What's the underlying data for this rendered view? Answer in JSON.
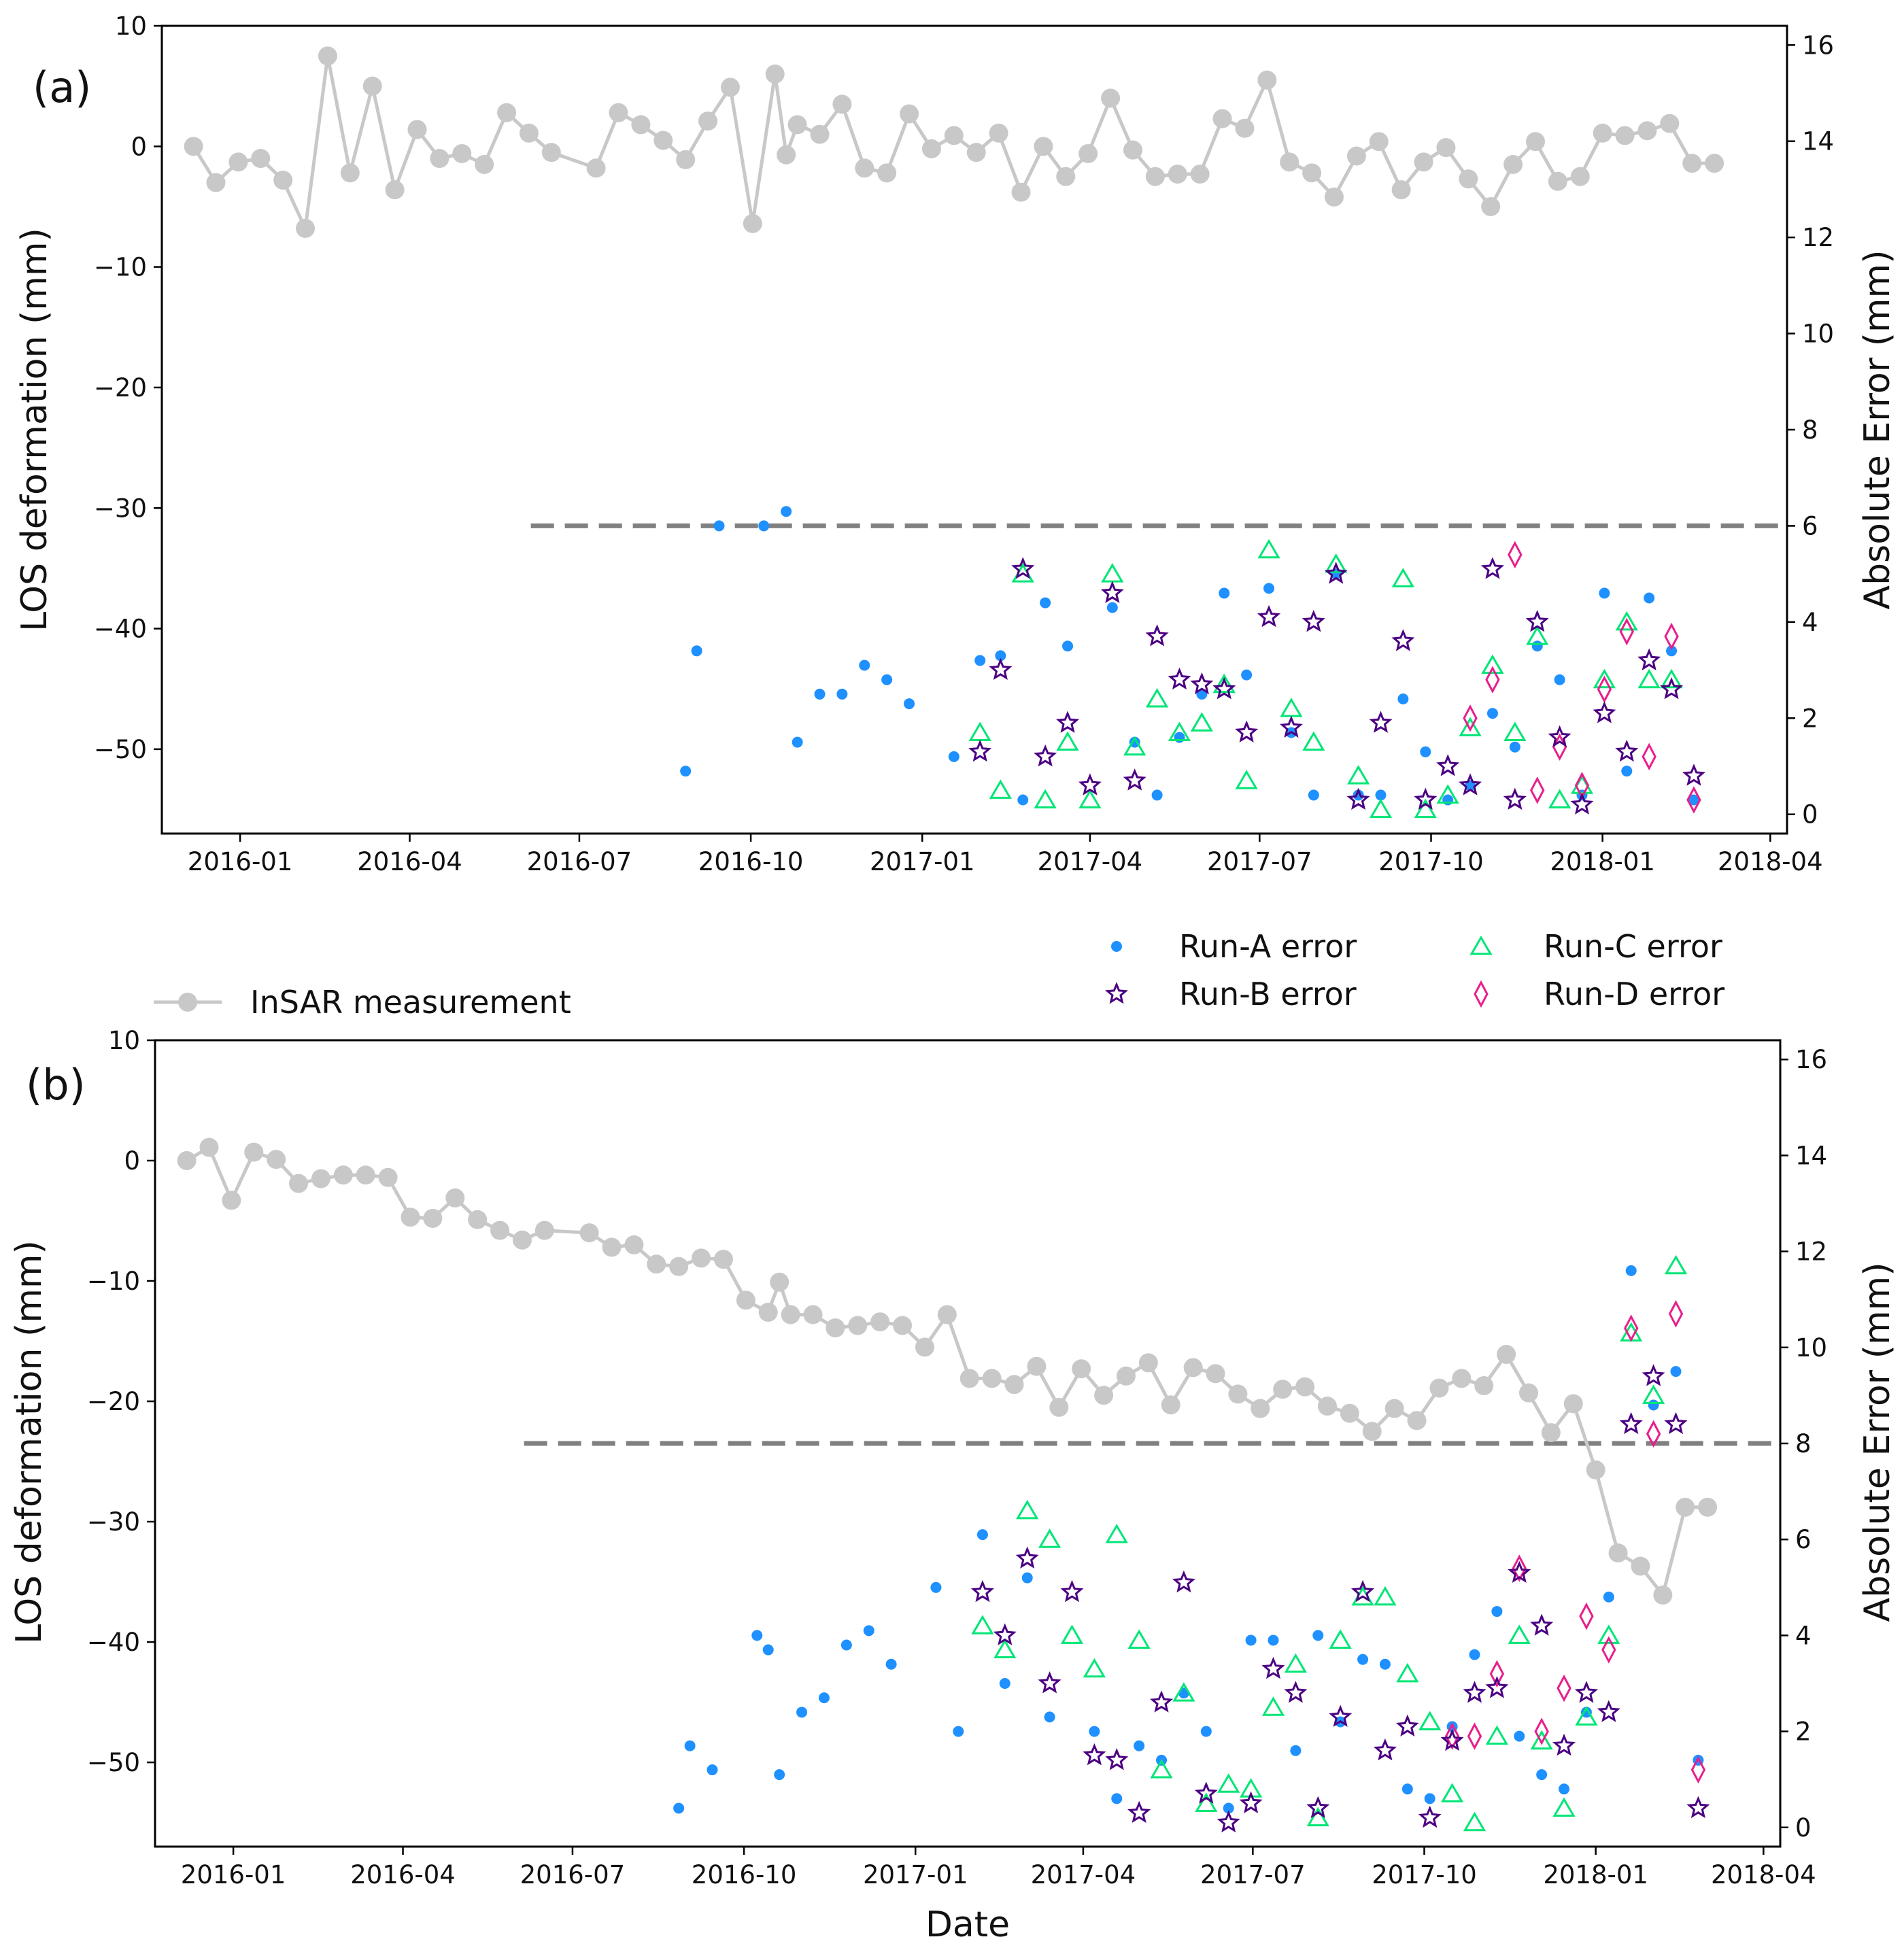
{
  "figure": {
    "xlabel": "Date",
    "legend": {
      "insar": "InSAR measurement",
      "run_a": "Run-A error",
      "run_b": "Run-B error",
      "run_c": "Run-C error",
      "run_d": "Run-D error"
    },
    "colors": {
      "insar": "#c8c8c8",
      "run_a": "#1e90ff",
      "run_b": "#4b0082",
      "run_c": "#00e676",
      "run_d": "#e91e8c",
      "threshold": "#808080"
    }
  },
  "chart_data": [
    {
      "type": "line",
      "panel_label": "(a)",
      "ylabel": "LOS deformation (mm)",
      "y2label": "Absolute Error (mm)",
      "xlim": [
        "2015-11-20",
        "2018-04-10"
      ],
      "ylim": [
        -57,
        10
      ],
      "y2lim": [
        -0.4,
        16.4
      ],
      "x_ticks": [
        "2016-01",
        "2016-04",
        "2016-07",
        "2016-10",
        "2017-01",
        "2017-04",
        "2017-07",
        "2017-10",
        "2018-01",
        "2018-04"
      ],
      "y_ticks": [
        "10",
        "0",
        "−10",
        "−20",
        "−30",
        "−40",
        "−50"
      ],
      "y2_ticks": [
        "16",
        "14",
        "12",
        "10",
        "8",
        "6",
        "4",
        "2",
        "0"
      ],
      "threshold": {
        "value": 6,
        "axis": "right",
        "start": "2016-06-05",
        "end": "2018-04-10"
      },
      "insar": {
        "dates": [
          "2015-12-07",
          "2015-12-19",
          "2015-12-31",
          "2016-01-12",
          "2016-01-24",
          "2016-02-05",
          "2016-02-17",
          "2016-02-29",
          "2016-03-12",
          "2016-03-24",
          "2016-04-05",
          "2016-04-17",
          "2016-04-29",
          "2016-05-11",
          "2016-05-23",
          "2016-06-04",
          "2016-06-16",
          "2016-07-10",
          "2016-07-22",
          "2016-08-03",
          "2016-08-15",
          "2016-08-27",
          "2016-09-08",
          "2016-09-20",
          "2016-10-02",
          "2016-10-14",
          "2016-10-20",
          "2016-10-26",
          "2016-11-07",
          "2016-11-19",
          "2016-12-01",
          "2016-12-13",
          "2016-12-25",
          "2017-01-06",
          "2017-01-18",
          "2017-01-30",
          "2017-02-11",
          "2017-02-23",
          "2017-03-07",
          "2017-03-19",
          "2017-03-31",
          "2017-04-12",
          "2017-04-24",
          "2017-05-06",
          "2017-05-18",
          "2017-05-30",
          "2017-06-11",
          "2017-06-23",
          "2017-07-05",
          "2017-07-17",
          "2017-07-29",
          "2017-08-10",
          "2017-08-22",
          "2017-09-03",
          "2017-09-15",
          "2017-09-27",
          "2017-10-09",
          "2017-10-21",
          "2017-11-02",
          "2017-11-14",
          "2017-11-26",
          "2017-12-08",
          "2017-12-20",
          "2018-01-01",
          "2018-01-13",
          "2018-01-25",
          "2018-02-06",
          "2018-02-18",
          "2018-03-02"
        ],
        "values": [
          0,
          -3,
          -1.3,
          -1,
          -2.8,
          -6.8,
          7.5,
          -2.2,
          5,
          -3.6,
          1.4,
          -1,
          -0.6,
          -1.5,
          2.8,
          1.1,
          -0.5,
          -1.8,
          2.8,
          1.8,
          0.5,
          -1.1,
          2.1,
          4.9,
          -6.4,
          6,
          -0.7,
          1.8,
          1,
          3.5,
          -1.8,
          -2.2,
          2.7,
          -0.2,
          0.9,
          -0.5,
          1.1,
          -3.8,
          0,
          -2.5,
          -0.6,
          4,
          -0.3,
          -2.5,
          -2.3,
          -2.3,
          2.3,
          1.5,
          5.5,
          -1.3,
          -2.2,
          -4.2,
          -0.8,
          0.4,
          -3.6,
          -1.3,
          -0.1,
          -2.7,
          -5,
          -1.5,
          0.4,
          -2.9,
          -2.5,
          1.1,
          0.9,
          1.3,
          1.9,
          -1.4,
          -1.4
        ]
      },
      "run_a": {
        "dates": [
          "2016-08-27",
          "2016-09-02",
          "2016-09-14",
          "2016-10-08",
          "2016-10-20",
          "2016-10-26",
          "2016-11-07",
          "2016-11-19",
          "2016-12-01",
          "2016-12-13",
          "2016-12-25",
          "2017-01-18",
          "2017-02-01",
          "2017-02-12",
          "2017-02-24",
          "2017-03-08",
          "2017-03-20",
          "2017-04-13",
          "2017-04-25",
          "2017-05-07",
          "2017-05-19",
          "2017-05-31",
          "2017-06-12",
          "2017-06-24",
          "2017-07-06",
          "2017-07-18",
          "2017-07-30",
          "2017-08-11",
          "2017-08-23",
          "2017-09-04",
          "2017-09-16",
          "2017-09-28",
          "2017-10-10",
          "2017-10-22",
          "2017-11-03",
          "2017-11-15",
          "2017-11-27",
          "2017-12-09",
          "2017-12-21",
          "2018-01-02",
          "2018-01-14",
          "2018-01-26",
          "2018-02-07",
          "2018-02-19"
        ],
        "values": [
          0.9,
          3.4,
          6.0,
          6.0,
          6.3,
          1.5,
          2.5,
          2.5,
          3.1,
          2.8,
          2.3,
          1.2,
          3.2,
          3.3,
          0.3,
          4.4,
          3.5,
          4.3,
          1.5,
          0.4,
          1.6,
          2.5,
          4.6,
          2.9,
          4.7,
          1.7,
          0.4,
          5.0,
          0.4,
          0.4,
          2.4,
          1.3,
          0.3,
          0.6,
          2.1,
          1.4,
          3.5,
          2.8,
          0.4,
          4.6,
          0.9,
          4.5,
          3.4,
          0.3
        ]
      },
      "run_b": {
        "dates": [
          "2017-02-01",
          "2017-02-12",
          "2017-02-24",
          "2017-03-08",
          "2017-03-20",
          "2017-04-01",
          "2017-04-13",
          "2017-04-25",
          "2017-05-07",
          "2017-05-19",
          "2017-05-31",
          "2017-06-12",
          "2017-06-24",
          "2017-07-06",
          "2017-07-18",
          "2017-07-30",
          "2017-08-11",
          "2017-08-23",
          "2017-09-04",
          "2017-09-16",
          "2017-09-28",
          "2017-10-10",
          "2017-10-22",
          "2017-11-03",
          "2017-11-15",
          "2017-11-27",
          "2017-12-09",
          "2017-12-21",
          "2018-01-02",
          "2018-01-14",
          "2018-01-26",
          "2018-02-07",
          "2018-02-19"
        ],
        "values": [
          1.3,
          3.0,
          5.1,
          1.2,
          1.9,
          0.6,
          4.6,
          0.7,
          3.7,
          2.8,
          2.7,
          2.6,
          1.7,
          4.1,
          1.8,
          4.0,
          5.0,
          0.3,
          1.9,
          3.6,
          0.3,
          1.0,
          0.6,
          5.1,
          0.3,
          4.0,
          1.6,
          0.2,
          2.1,
          1.3,
          3.2,
          2.6,
          0.8
        ]
      },
      "run_c": {
        "dates": [
          "2017-02-01",
          "2017-02-12",
          "2017-02-24",
          "2017-03-08",
          "2017-03-20",
          "2017-04-01",
          "2017-04-13",
          "2017-04-25",
          "2017-05-07",
          "2017-05-19",
          "2017-05-31",
          "2017-06-12",
          "2017-06-24",
          "2017-07-06",
          "2017-07-18",
          "2017-07-30",
          "2017-08-11",
          "2017-08-23",
          "2017-09-04",
          "2017-09-16",
          "2017-09-28",
          "2017-10-10",
          "2017-10-22",
          "2017-11-03",
          "2017-11-15",
          "2017-11-27",
          "2017-12-09",
          "2017-12-21",
          "2018-01-02",
          "2018-01-14",
          "2018-01-26",
          "2018-02-07"
        ],
        "values": [
          1.7,
          0.5,
          5.0,
          0.3,
          1.5,
          0.3,
          5.0,
          1.4,
          2.4,
          1.7,
          1.9,
          2.7,
          0.7,
          5.5,
          2.2,
          1.5,
          5.2,
          0.8,
          0.1,
          4.9,
          0.1,
          0.4,
          1.8,
          3.1,
          1.7,
          3.7,
          0.3,
          0.6,
          2.8,
          4.0,
          2.8,
          2.8
        ]
      },
      "run_d": {
        "dates": [
          "2017-10-22",
          "2017-11-03",
          "2017-11-15",
          "2017-11-27",
          "2017-12-09",
          "2017-12-21",
          "2018-01-02",
          "2018-01-14",
          "2018-01-26",
          "2018-02-07",
          "2018-02-19"
        ],
        "values": [
          2.0,
          2.8,
          5.4,
          0.5,
          1.4,
          0.6,
          2.6,
          3.8,
          1.2,
          3.7,
          0.3
        ]
      }
    },
    {
      "type": "line",
      "panel_label": "(b)",
      "ylabel": "LOS deformation (mm)",
      "y2label": "Absolute Error (mm)",
      "xlim": [
        "2015-11-20",
        "2018-04-10"
      ],
      "ylim": [
        -57,
        10
      ],
      "y2lim": [
        -0.4,
        16.4
      ],
      "x_ticks": [
        "2016-01",
        "2016-04",
        "2016-07",
        "2016-10",
        "2017-01",
        "2017-04",
        "2017-07",
        "2017-10",
        "2018-01",
        "2018-04"
      ],
      "y_ticks": [
        "10",
        "0",
        "−10",
        "−20",
        "−30",
        "−40",
        "−50"
      ],
      "y2_ticks": [
        "16",
        "14",
        "12",
        "10",
        "8",
        "6",
        "4",
        "2",
        "0"
      ],
      "threshold": {
        "value": 8,
        "axis": "right",
        "start": "2016-06-05",
        "end": "2018-04-10"
      },
      "insar": {
        "dates": [
          "2015-12-07",
          "2015-12-19",
          "2015-12-31",
          "2016-01-12",
          "2016-01-24",
          "2016-02-05",
          "2016-02-17",
          "2016-02-29",
          "2016-03-12",
          "2016-03-24",
          "2016-04-05",
          "2016-04-17",
          "2016-04-29",
          "2016-05-11",
          "2016-05-23",
          "2016-06-04",
          "2016-06-16",
          "2016-07-10",
          "2016-07-22",
          "2016-08-03",
          "2016-08-15",
          "2016-08-27",
          "2016-09-08",
          "2016-09-20",
          "2016-10-02",
          "2016-10-14",
          "2016-10-20",
          "2016-10-26",
          "2016-11-07",
          "2016-11-19",
          "2016-12-01",
          "2016-12-13",
          "2016-12-25",
          "2017-01-06",
          "2017-01-18",
          "2017-01-30",
          "2017-02-11",
          "2017-02-23",
          "2017-03-07",
          "2017-03-19",
          "2017-03-31",
          "2017-04-12",
          "2017-04-24",
          "2017-05-06",
          "2017-05-18",
          "2017-05-30",
          "2017-06-11",
          "2017-06-23",
          "2017-07-05",
          "2017-07-17",
          "2017-07-29",
          "2017-08-10",
          "2017-08-22",
          "2017-09-03",
          "2017-09-15",
          "2017-09-27",
          "2017-10-09",
          "2017-10-21",
          "2017-11-02",
          "2017-11-14",
          "2017-11-26",
          "2017-12-08",
          "2017-12-20",
          "2018-01-01",
          "2018-01-13",
          "2018-01-25",
          "2018-02-06",
          "2018-02-18",
          "2018-03-02"
        ],
        "values": [
          0,
          1.1,
          -3.3,
          0.7,
          0.1,
          -1.9,
          -1.5,
          -1.2,
          -1.2,
          -1.4,
          -4.7,
          -4.8,
          -3.1,
          -4.9,
          -5.8,
          -6.6,
          -5.8,
          -6,
          -7.2,
          -7,
          -8.6,
          -8.8,
          -8.1,
          -8.2,
          -11.6,
          -12.6,
          -10.1,
          -12.8,
          -12.8,
          -13.9,
          -13.7,
          -13.4,
          -13.7,
          -15.5,
          -12.8,
          -18.1,
          -18.1,
          -18.6,
          -17.1,
          -20.5,
          -17.3,
          -19.5,
          -17.9,
          -16.8,
          -20.3,
          -17.2,
          -17.7,
          -19.4,
          -20.6,
          -19,
          -18.8,
          -20.4,
          -21,
          -22.5,
          -20.6,
          -21.6,
          -18.9,
          -18.1,
          -18.7,
          -16.1,
          -19.3,
          -22.6,
          -20.2,
          -25.7,
          -32.6,
          -33.7,
          -36.1,
          -28.8,
          -28.8
        ]
      },
      "run_a": {
        "dates": [
          "2016-08-27",
          "2016-09-02",
          "2016-09-14",
          "2016-10-08",
          "2016-10-14",
          "2016-10-20",
          "2016-11-01",
          "2016-11-13",
          "2016-11-25",
          "2016-12-07",
          "2016-12-19",
          "2017-01-12",
          "2017-01-24",
          "2017-02-06",
          "2017-02-18",
          "2017-03-02",
          "2017-03-14",
          "2017-04-07",
          "2017-04-19",
          "2017-05-01",
          "2017-05-13",
          "2017-05-25",
          "2017-06-06",
          "2017-06-18",
          "2017-06-30",
          "2017-07-12",
          "2017-07-24",
          "2017-08-05",
          "2017-08-17",
          "2017-08-29",
          "2017-09-10",
          "2017-09-22",
          "2017-10-04",
          "2017-10-16",
          "2017-10-28",
          "2017-11-09",
          "2017-11-21",
          "2017-12-03",
          "2017-12-15",
          "2017-12-27",
          "2018-01-08",
          "2018-01-20",
          "2018-02-01",
          "2018-02-13",
          "2018-02-25"
        ],
        "values": [
          0.4,
          1.7,
          1.2,
          4.0,
          3.7,
          1.1,
          2.4,
          2.7,
          3.8,
          4.1,
          3.4,
          5.0,
          2.0,
          6.1,
          3.0,
          5.2,
          2.3,
          2.0,
          0.6,
          1.7,
          1.4,
          2.8,
          2.0,
          0.4,
          3.9,
          3.9,
          1.6,
          4.0,
          2.2,
          3.5,
          3.4,
          0.8,
          0.6,
          2.1,
          3.6,
          4.5,
          1.9,
          1.1,
          0.8,
          2.4,
          4.8,
          11.6,
          8.8,
          9.5,
          1.4
        ]
      },
      "run_b": {
        "dates": [
          "2017-02-06",
          "2017-02-18",
          "2017-03-02",
          "2017-03-14",
          "2017-03-26",
          "2017-04-07",
          "2017-04-19",
          "2017-05-01",
          "2017-05-13",
          "2017-05-25",
          "2017-06-06",
          "2017-06-18",
          "2017-06-30",
          "2017-07-12",
          "2017-07-24",
          "2017-08-05",
          "2017-08-17",
          "2017-08-29",
          "2017-09-10",
          "2017-09-22",
          "2017-10-04",
          "2017-10-16",
          "2017-10-28",
          "2017-11-09",
          "2017-11-21",
          "2017-12-03",
          "2017-12-15",
          "2017-12-27",
          "2018-01-08",
          "2018-01-20",
          "2018-02-01",
          "2018-02-13",
          "2018-02-25"
        ],
        "values": [
          4.9,
          4.0,
          5.6,
          3.0,
          4.9,
          1.5,
          1.4,
          0.3,
          2.6,
          5.1,
          0.7,
          0.1,
          0.5,
          3.3,
          2.8,
          0.4,
          2.3,
          4.9,
          1.6,
          2.1,
          0.2,
          1.8,
          2.8,
          2.9,
          5.3,
          4.2,
          1.7,
          2.8,
          2.4,
          8.4,
          9.4,
          8.4,
          0.4
        ]
      },
      "run_c": {
        "dates": [
          "2017-02-06",
          "2017-02-18",
          "2017-03-02",
          "2017-03-14",
          "2017-03-26",
          "2017-04-07",
          "2017-04-19",
          "2017-05-01",
          "2017-05-13",
          "2017-05-25",
          "2017-06-06",
          "2017-06-18",
          "2017-06-30",
          "2017-07-12",
          "2017-07-24",
          "2017-08-05",
          "2017-08-17",
          "2017-08-29",
          "2017-09-10",
          "2017-09-22",
          "2017-10-04",
          "2017-10-16",
          "2017-10-28",
          "2017-11-09",
          "2017-11-21",
          "2017-12-03",
          "2017-12-15",
          "2017-12-27",
          "2018-01-08",
          "2018-01-20",
          "2018-02-01",
          "2018-02-13"
        ],
        "values": [
          4.2,
          3.7,
          6.6,
          6.0,
          4.0,
          3.3,
          6.1,
          3.9,
          1.2,
          2.8,
          0.5,
          0.9,
          0.8,
          2.5,
          3.4,
          0.2,
          3.9,
          4.8,
          4.8,
          3.2,
          2.2,
          0.7,
          0.1,
          1.9,
          4.0,
          1.8,
          0.4,
          2.3,
          4.0,
          10.3,
          9.0,
          11.7
        ]
      },
      "run_d": {
        "dates": [
          "2017-10-16",
          "2017-10-28",
          "2017-11-09",
          "2017-11-21",
          "2017-12-03",
          "2017-12-15",
          "2017-12-27",
          "2018-01-08",
          "2018-01-20",
          "2018-02-01",
          "2018-02-13",
          "2018-02-25"
        ],
        "values": [
          1.9,
          1.9,
          3.2,
          5.4,
          2.0,
          2.9,
          4.4,
          3.7,
          10.4,
          8.2,
          10.7,
          1.2
        ]
      }
    }
  ]
}
